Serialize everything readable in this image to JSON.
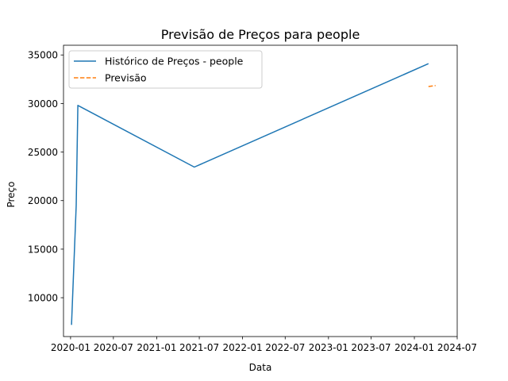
{
  "chart_data": {
    "type": "line",
    "title": "Previsão de Preços para people",
    "xlabel": "Data",
    "ylabel": "Preço",
    "xlim": [
      "2019-12-02",
      "2024-07-01"
    ],
    "ylim": [
      6000,
      36000
    ],
    "x_ticks": [
      "2020-01",
      "2020-07",
      "2021-01",
      "2021-07",
      "2022-01",
      "2022-07",
      "2023-01",
      "2023-07",
      "2024-01",
      "2024-07"
    ],
    "y_ticks": [
      10000,
      15000,
      20000,
      25000,
      30000,
      35000
    ],
    "grid": false,
    "legend_position": "upper-left",
    "series": [
      {
        "name": "Histórico de Preços - people",
        "color": "#1f77b4",
        "style": "solid",
        "points": [
          {
            "x": "2020-01-05",
            "y": 7200
          },
          {
            "x": "2020-01-25",
            "y": 19500
          },
          {
            "x": "2020-02-01",
            "y": 29800
          },
          {
            "x": "2021-06-10",
            "y": 23450
          },
          {
            "x": "2024-03-01",
            "y": 34100
          }
        ]
      },
      {
        "name": "Previsão",
        "color": "#ff7f0e",
        "style": "dashed",
        "points": [
          {
            "x": "2024-03-01",
            "y": 31750
          },
          {
            "x": "2024-03-31",
            "y": 31850
          }
        ]
      }
    ]
  }
}
